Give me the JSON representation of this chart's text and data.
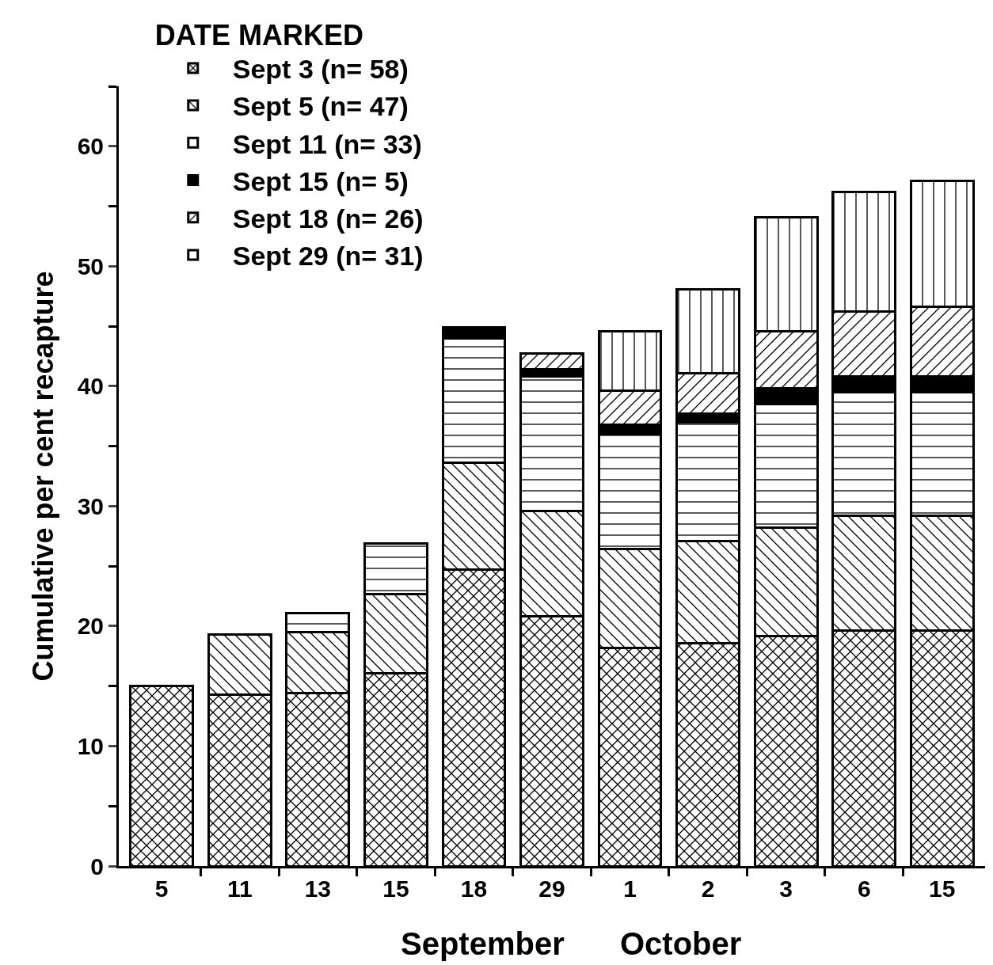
{
  "chart_data": {
    "type": "bar",
    "stacked": true,
    "legend_title": "DATE MARKED",
    "ylabel": "Cumulative per cent recapture",
    "legend": "top left",
    "grid": false,
    "categories": [
      "5",
      "11",
      "13",
      "15",
      "18",
      "29",
      "1",
      "2",
      "3",
      "6",
      "15"
    ],
    "annotations": [
      "September",
      "October"
    ],
    "ylim": [
      0,
      65
    ],
    "yticks": [
      0,
      10,
      20,
      30,
      40,
      50,
      60
    ],
    "series": [
      {
        "name": "Sept 3 (n= 58)",
        "color": "#000000",
        "values": [
          15.0,
          14.3,
          14.4,
          16.1,
          24.7,
          20.8,
          18.2,
          18.6,
          19.2,
          19.6,
          19.6
        ]
      },
      {
        "name": "Sept 5 (n= 47)",
        "color": "#000000",
        "values": [
          null,
          5.0,
          5.1,
          6.6,
          8.9,
          8.8,
          8.2,
          8.5,
          9.0,
          9.6,
          9.6
        ]
      },
      {
        "name": "Sept 11 (n= 33)",
        "color": "#000000",
        "values": [
          null,
          null,
          1.6,
          4.2,
          10.4,
          11.2,
          9.6,
          9.9,
          10.3,
          10.3,
          10.3
        ]
      },
      {
        "name": "Sept 15 (n= 5)",
        "color": "#000000",
        "values": [
          null,
          null,
          null,
          null,
          0.9,
          0.6,
          0.8,
          0.7,
          1.3,
          1.3,
          1.3
        ]
      },
      {
        "name": "Sept 18 (n= 26)",
        "color": "#000000",
        "values": [
          null,
          null,
          null,
          null,
          null,
          1.3,
          2.8,
          3.4,
          4.8,
          5.4,
          5.8
        ]
      },
      {
        "name": "Sept 29 (n= 31)",
        "color": "#000000",
        "values": [
          null,
          null,
          null,
          null,
          null,
          null,
          5.0,
          7.0,
          9.5,
          10.0,
          10.5
        ]
      }
    ]
  }
}
